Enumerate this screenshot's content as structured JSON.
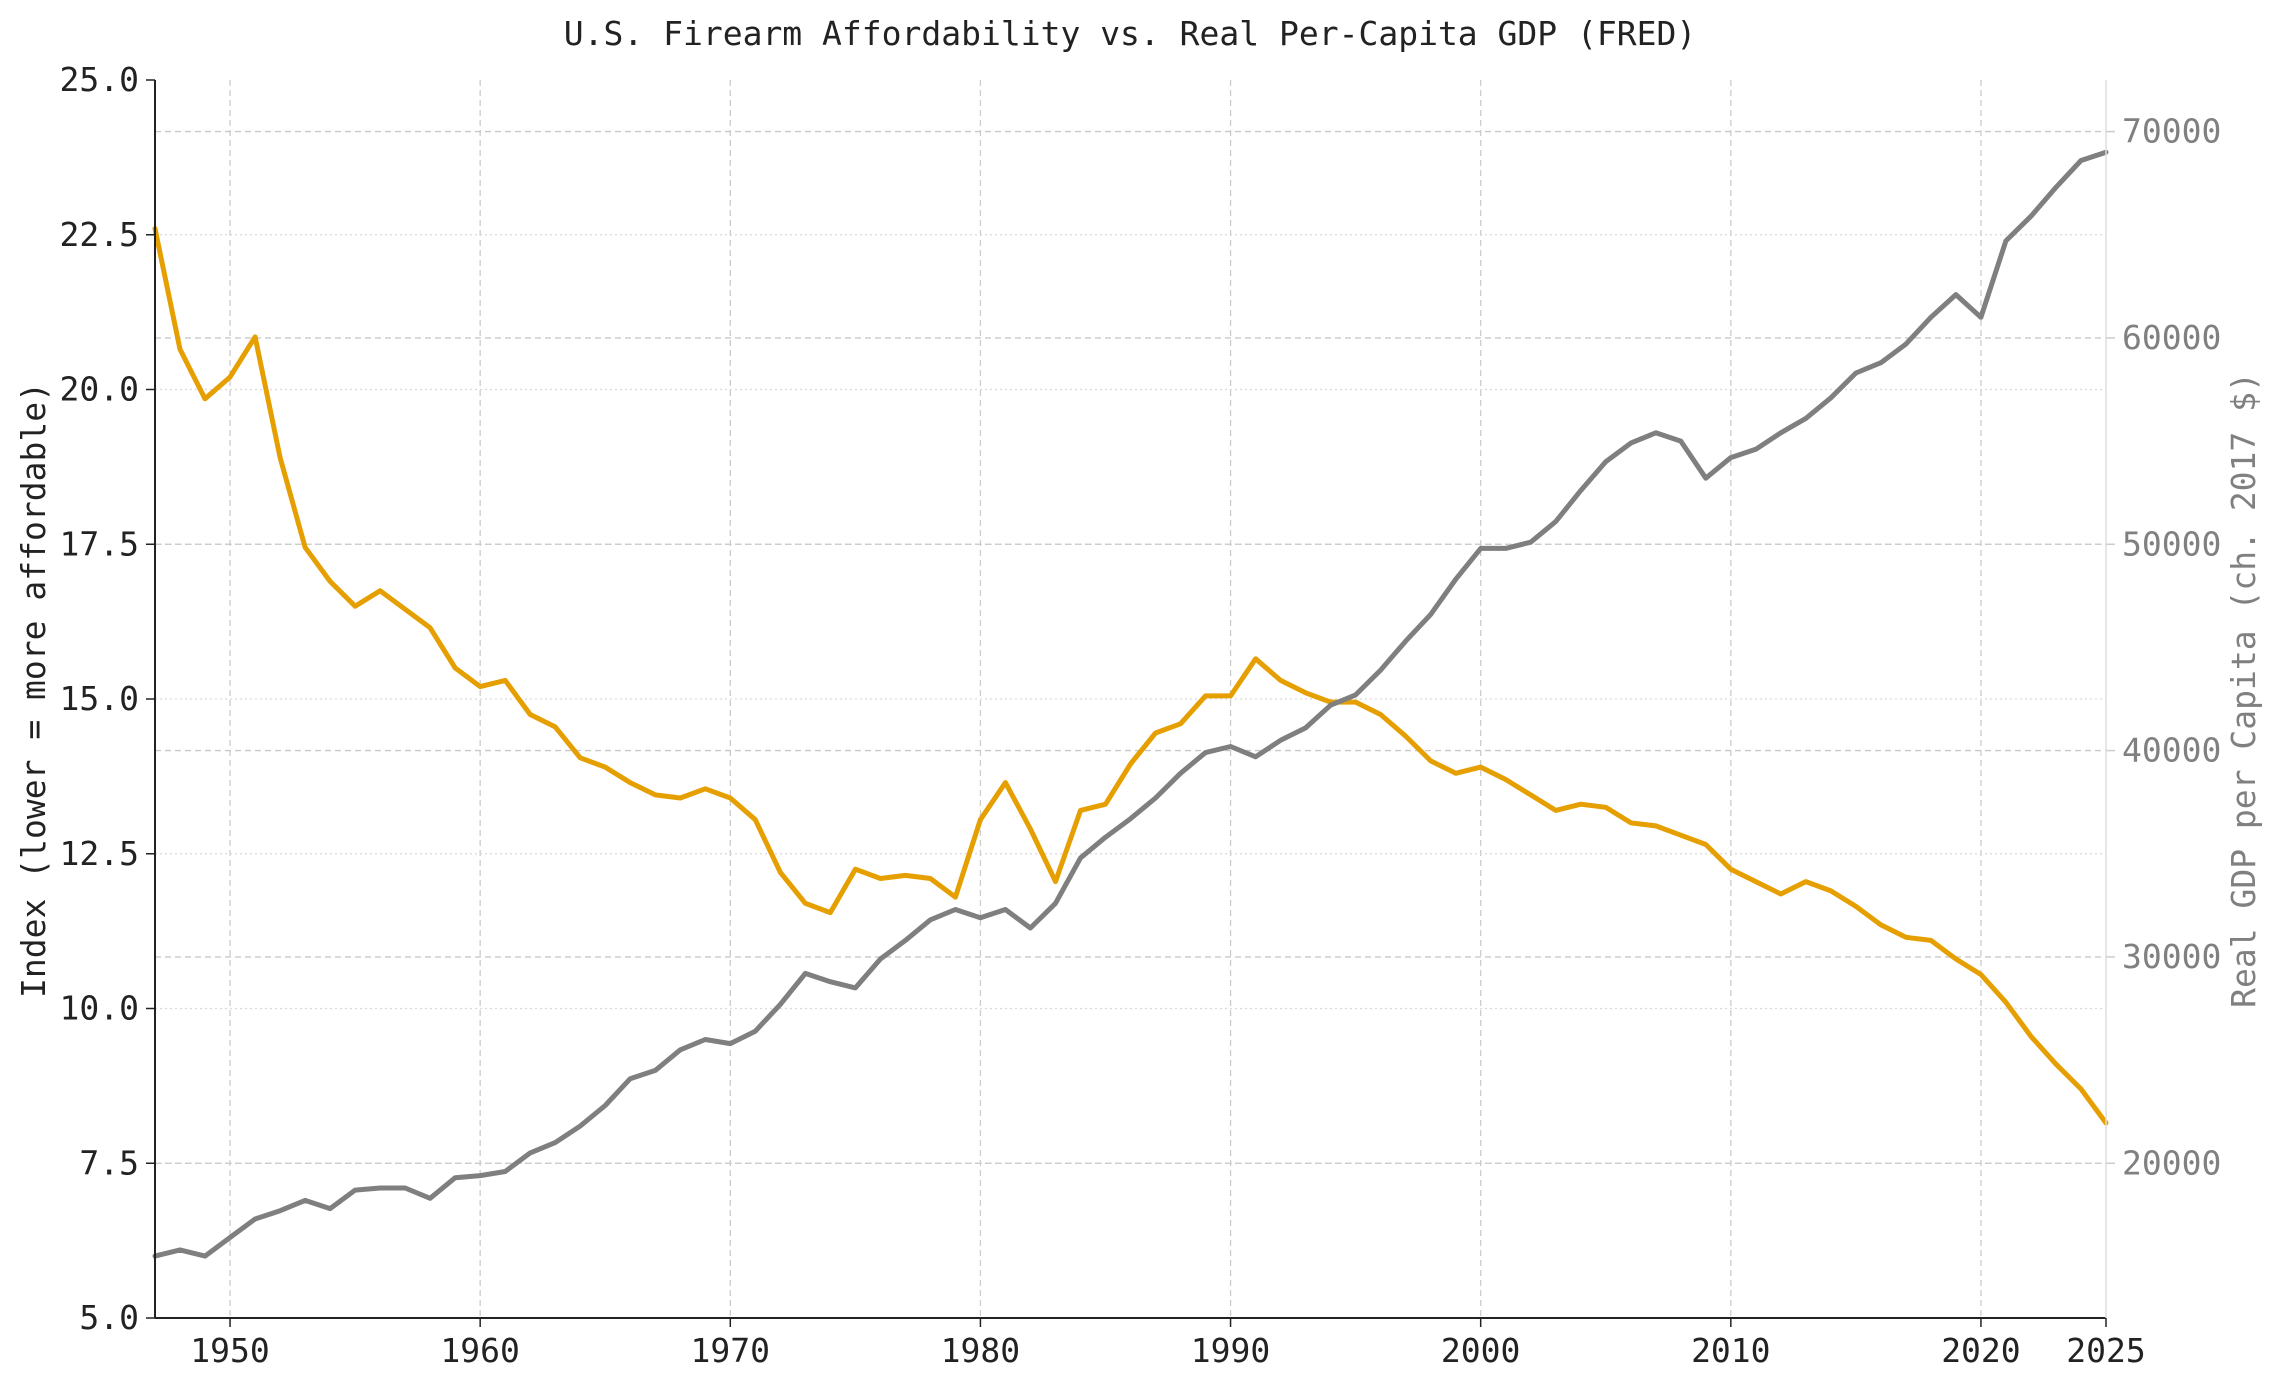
{
  "chart_data": {
    "type": "line",
    "title": "U.S. Firearm Affordability vs. Real Per-Capita GDP (FRED)",
    "xlabel": "",
    "ylabel_left": "Index (lower = more affordable)",
    "ylabel_right": "Real GDP per Capita (ch. 2017 $)",
    "xlim": [
      1947,
      2025
    ],
    "ylim_left": [
      5.0,
      25.0
    ],
    "ylim_right": [
      12500,
      72500
    ],
    "x_ticks": [
      "1950",
      "1960",
      "1970",
      "1980",
      "1990",
      "2000",
      "2010",
      "2020",
      "2025"
    ],
    "y_left_ticks": [
      "5.0",
      "7.5",
      "10.0",
      "12.5",
      "15.0",
      "17.5",
      "20.0",
      "22.5",
      "25.0"
    ],
    "y_right_ticks": [
      "20000",
      "30000",
      "40000",
      "50000",
      "60000",
      "70000"
    ],
    "grid": true,
    "colors": {
      "affordability": "#E69F00",
      "gdp": "#7F7F7F"
    },
    "x": [
      1947,
      1948,
      1949,
      1950,
      1951,
      1952,
      1953,
      1954,
      1955,
      1956,
      1957,
      1958,
      1959,
      1960,
      1961,
      1962,
      1963,
      1964,
      1965,
      1966,
      1967,
      1968,
      1969,
      1970,
      1971,
      1972,
      1973,
      1974,
      1975,
      1976,
      1977,
      1978,
      1979,
      1980,
      1981,
      1982,
      1983,
      1984,
      1985,
      1986,
      1987,
      1988,
      1989,
      1990,
      1991,
      1992,
      1993,
      1994,
      1995,
      1996,
      1997,
      1998,
      1999,
      2000,
      2001,
      2002,
      2003,
      2004,
      2005,
      2006,
      2007,
      2008,
      2009,
      2010,
      2011,
      2012,
      2013,
      2014,
      2015,
      2016,
      2017,
      2018,
      2019,
      2020,
      2021,
      2022,
      2023,
      2024,
      2025
    ],
    "series": [
      {
        "axis": "left",
        "values": [
          22.6,
          20.65,
          19.85,
          20.2,
          20.85,
          18.9,
          17.45,
          16.9,
          16.5,
          16.75,
          16.45,
          16.15,
          15.5,
          15.2,
          15.3,
          14.75,
          14.55,
          14.05,
          13.9,
          13.65,
          13.45,
          13.4,
          13.55,
          13.4,
          13.05,
          12.2,
          11.7,
          11.55,
          12.25,
          12.1,
          12.15,
          12.1,
          11.8,
          13.05,
          13.65,
          12.9,
          12.05,
          13.2,
          13.3,
          13.95,
          14.45,
          14.6,
          15.05,
          15.05,
          15.65,
          15.3,
          15.1,
          14.95,
          14.95,
          14.75,
          14.4,
          14.0,
          13.8,
          13.9,
          13.7,
          13.45,
          13.2,
          13.3,
          13.25,
          13.0,
          12.95,
          12.8,
          12.65,
          12.25,
          12.05,
          11.85,
          12.05,
          11.9,
          11.65,
          11.35,
          11.15,
          11.1,
          10.8,
          10.55,
          10.1,
          9.55,
          9.1,
          8.7,
          8.15
        ]
      },
      {
        "axis": "right",
        "values": [
          15500,
          15800,
          15500,
          16400,
          17300,
          17700,
          18200,
          17800,
          18700,
          18800,
          18800,
          18300,
          19300,
          19400,
          19600,
          20500,
          21000,
          21800,
          22800,
          24100,
          24500,
          25500,
          26000,
          25800,
          26400,
          27700,
          29200,
          28800,
          28500,
          29900,
          30800,
          31800,
          32300,
          31900,
          32300,
          31400,
          32600,
          34800,
          35800,
          36700,
          37700,
          38900,
          39900,
          40200,
          39700,
          40500,
          41100,
          42200,
          42700,
          43900,
          45300,
          46600,
          48300,
          49800,
          49800,
          50100,
          51100,
          52600,
          54000,
          54900,
          55400,
          55000,
          53200,
          54200,
          54600,
          55400,
          56100,
          57100,
          58300,
          58800,
          59700,
          61000,
          62100,
          61000,
          64700,
          65900,
          67300,
          68600,
          69000
        ]
      }
    ]
  }
}
